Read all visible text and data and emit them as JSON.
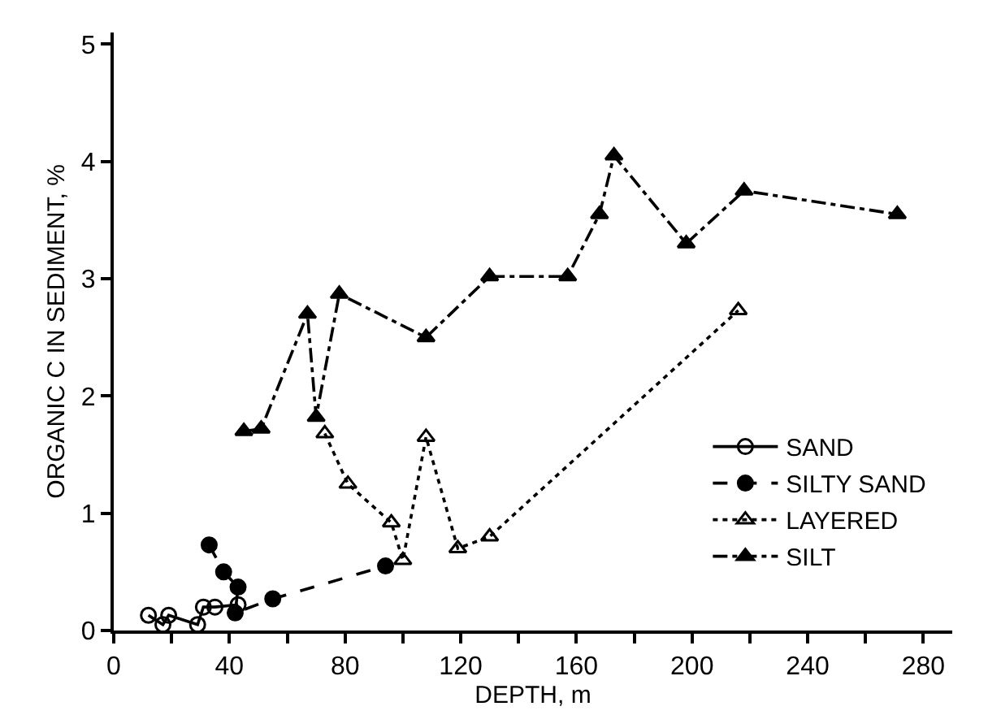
{
  "chart_data": {
    "type": "line",
    "xlabel": "DEPTH, m",
    "ylabel": "ORGANIC C IN SEDIMENT, %",
    "xlim": [
      0,
      290
    ],
    "ylim": [
      0,
      5.1
    ],
    "xticks": [
      0,
      {
        "value": 20,
        "label": null
      },
      40,
      {
        "value": 60,
        "label": null
      },
      80,
      {
        "value": 100,
        "label": null
      },
      120,
      {
        "value": 140,
        "label": null
      },
      160,
      {
        "value": 180,
        "label": null
      },
      200,
      {
        "value": 220,
        "label": null
      },
      240,
      {
        "value": 260,
        "label": null
      },
      280
    ],
    "yticks": [
      0,
      1,
      2,
      3,
      4,
      5
    ],
    "legend": "bottom right",
    "series": [
      {
        "name": "SAND",
        "color": "#000000",
        "marker": "circle-open",
        "line_style": "solid",
        "x": [
          12,
          17,
          19,
          29,
          31,
          35,
          43
        ],
        "values": [
          0.13,
          0.05,
          0.13,
          0.05,
          0.2,
          0.2,
          0.22
        ]
      },
      {
        "name": "SILTY SAND",
        "color": "#000000",
        "marker": "circle",
        "line_style": "dashed",
        "x": [
          33,
          38,
          43,
          42,
          55,
          94
        ],
        "values": [
          0.73,
          0.5,
          0.37,
          0.15,
          0.27,
          0.55
        ]
      },
      {
        "name": "LAYERED",
        "color": "#000000",
        "marker": "triangle-open",
        "line_style": "dotted",
        "x": [
          73,
          81,
          96,
          100,
          108,
          119,
          130,
          216
        ],
        "values": [
          1.68,
          1.25,
          0.92,
          0.6,
          1.65,
          0.7,
          0.8,
          2.73
        ]
      },
      {
        "name": "SILT",
        "color": "#000000",
        "marker": "triangle",
        "line_style": "dashdot",
        "x": [
          45,
          51,
          67,
          70,
          78,
          108,
          130,
          157,
          168,
          173,
          198,
          218,
          271
        ],
        "values": [
          1.7,
          1.72,
          2.7,
          1.82,
          2.87,
          2.5,
          3.02,
          3.02,
          3.55,
          4.05,
          3.3,
          3.75,
          3.55
        ]
      }
    ]
  }
}
